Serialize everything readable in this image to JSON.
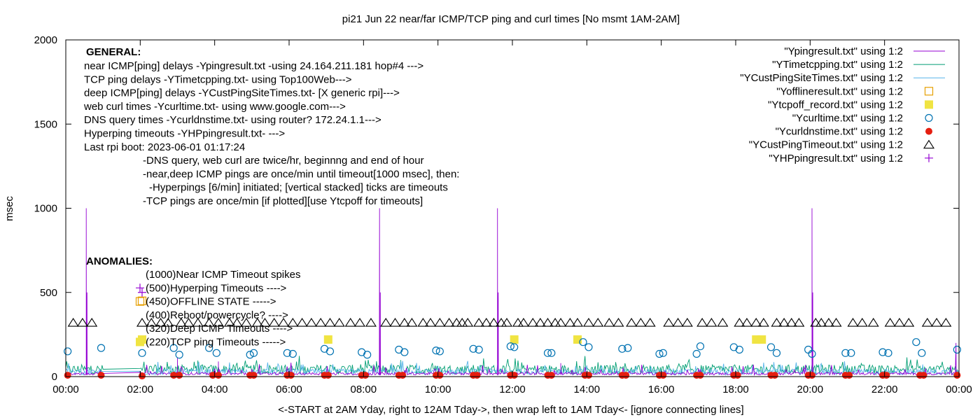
{
  "chart_data": {
    "type": "line",
    "title": "pi21 Jun 22  near/far ICMP/TCP ping and curl times [No msmt 1AM-2AM]",
    "xlabel": "<-START at 2AM Yday, right to 12AM Tday->, then wrap left to 1AM Tday<- [ignore connecting lines]",
    "ylabel": "msec",
    "xlim": [
      0,
      24
    ],
    "ylim": [
      0,
      2000
    ],
    "x_ticks": [
      "00:00",
      "02:00",
      "04:00",
      "06:00",
      "08:00",
      "10:00",
      "12:00",
      "14:00",
      "16:00",
      "18:00",
      "20:00",
      "22:00",
      "00:00"
    ],
    "y_ticks": [
      "0",
      "500",
      "1000",
      "1500",
      "2000"
    ],
    "grid": false,
    "legend_position": "top-right",
    "general_heading": "GENERAL:",
    "general_notes": [
      "near ICMP[ping] delays -Ypingresult.txt -using 24.164.211.181 hop#4 --->",
      "TCP ping delays -YTimetcpping.txt- using Top100Web--->",
      "deep ICMP[ping] delays -YCustPingSiteTimes.txt- [X generic rpi]--->",
      "web curl times -Ycurltime.txt- using www.google.com--->",
      "DNS query times -Ycurldnstime.txt- using router? 172.24.1.1--->",
      "Hyperping timeouts -YHPpingresult.txt- --->",
      "Last rpi boot: 2023-06-01 01:17:24"
    ],
    "indented_notes": [
      "-DNS query, web curl are twice/hr, beginnng and end of hour",
      "-near,deep ICMP pings are once/min until timeout[1000 msec], then:",
      "-Hyperpings [6/min] initiated; [vertical stacked] ticks are timeouts",
      "-TCP pings are once/min [if plotted][use Ytcpoff for timeouts]"
    ],
    "anomalies_heading": "ANOMALIES:",
    "anomalies": [
      {
        "text": "(1000)Near ICMP Timeout spikes",
        "marker": "none",
        "y": 1000
      },
      {
        "text": "(500)Hyperping Timeouts ---->",
        "marker": "plus",
        "y": 500
      },
      {
        "text": "(450)OFFLINE STATE ----->",
        "marker": "square-open",
        "y": 450
      },
      {
        "text": "(400)Reboot/powercycle? ---->",
        "marker": "none",
        "y": 400
      },
      {
        "text": "(320)Deep ICMP Timeouts ---->",
        "marker": "none",
        "y": 320
      },
      {
        "text": "(220)TCP ping Timeouts ----->",
        "marker": "square-filled",
        "y": 220
      }
    ],
    "series": [
      {
        "name": "\"Ypingresult.txt\" using 1:2",
        "style": "line",
        "color": "#9400d3",
        "baseline": [
          10,
          25
        ],
        "spikes": [
          [
            0.55,
            1000
          ],
          [
            0.57,
            500
          ],
          [
            8.43,
            1000
          ],
          [
            8.45,
            500
          ],
          [
            11.6,
            1000
          ],
          [
            11.62,
            500
          ],
          [
            20.05,
            1000
          ],
          [
            20.07,
            500
          ],
          [
            23.92,
            200
          ],
          [
            3.0,
            110
          ],
          [
            4.1,
            90
          ],
          [
            13.3,
            80
          ]
        ]
      },
      {
        "name": "\"YTimetcpping.txt\" using 1:2",
        "style": "line",
        "color": "#009e73",
        "baseline": [
          15,
          70
        ]
      },
      {
        "name": "\"YCustPingSiteTimes.txt\" using 1:2",
        "style": "line",
        "color": "#56b4e9",
        "baseline": [
          10,
          45
        ]
      },
      {
        "name": "\"Yofflineresult.txt\" using 1:2",
        "style": "square-open",
        "color": "#e69f00",
        "points": [
          [
            2.05,
            450
          ]
        ]
      },
      {
        "name": "\"Ytcpoff_record.txt\" using 1:2",
        "style": "square-filled",
        "color": "#f0e442",
        "points": [
          [
            2.05,
            220
          ],
          [
            7.05,
            220
          ],
          [
            12.05,
            220
          ],
          [
            13.75,
            220
          ],
          [
            18.55,
            220
          ],
          [
            18.7,
            220
          ]
        ]
      },
      {
        "name": "\"Ycurltime.txt\" using 1:2",
        "style": "circle-open",
        "color": "#0072b2",
        "points": [
          [
            0.05,
            150
          ],
          [
            0.95,
            170
          ],
          [
            2.05,
            140
          ],
          [
            2.9,
            170
          ],
          [
            3.05,
            130
          ],
          [
            3.85,
            170
          ],
          [
            4.05,
            140
          ],
          [
            4.95,
            130
          ],
          [
            5.05,
            140
          ],
          [
            5.95,
            140
          ],
          [
            6.1,
            135
          ],
          [
            6.95,
            165
          ],
          [
            7.1,
            150
          ],
          [
            7.95,
            145
          ],
          [
            8.1,
            130
          ],
          [
            8.95,
            160
          ],
          [
            9.1,
            145
          ],
          [
            9.95,
            155
          ],
          [
            10.05,
            150
          ],
          [
            10.95,
            165
          ],
          [
            11.1,
            160
          ],
          [
            11.95,
            180
          ],
          [
            12.05,
            175
          ],
          [
            12.95,
            140
          ],
          [
            13.05,
            140
          ],
          [
            13.9,
            205
          ],
          [
            14.05,
            175
          ],
          [
            14.95,
            165
          ],
          [
            15.1,
            170
          ],
          [
            15.95,
            135
          ],
          [
            16.05,
            140
          ],
          [
            16.95,
            135
          ],
          [
            17.05,
            180
          ],
          [
            17.95,
            175
          ],
          [
            18.1,
            160
          ],
          [
            18.95,
            175
          ],
          [
            19.1,
            140
          ],
          [
            19.95,
            160
          ],
          [
            20.05,
            135
          ],
          [
            20.95,
            140
          ],
          [
            21.1,
            140
          ],
          [
            21.95,
            145
          ],
          [
            22.1,
            140
          ],
          [
            22.85,
            205
          ],
          [
            23.0,
            140
          ],
          [
            23.95,
            160
          ]
        ]
      },
      {
        "name": "\"Ycurldnstime.txt\" using 1:2",
        "style": "circle-filled",
        "color": "#e51e10",
        "points": [
          [
            0.05,
            8
          ],
          [
            0.95,
            8
          ],
          [
            2.05,
            4
          ],
          [
            2.9,
            8
          ],
          [
            3.05,
            8
          ],
          [
            3.95,
            8
          ],
          [
            4.1,
            8
          ],
          [
            4.95,
            8
          ],
          [
            5.05,
            8
          ],
          [
            5.95,
            8
          ],
          [
            6.05,
            8
          ],
          [
            6.95,
            8
          ],
          [
            7.05,
            8
          ],
          [
            7.95,
            8
          ],
          [
            8.05,
            8
          ],
          [
            8.95,
            8
          ],
          [
            9.05,
            8
          ],
          [
            9.95,
            8
          ],
          [
            10.05,
            8
          ],
          [
            10.95,
            8
          ],
          [
            11.05,
            8
          ],
          [
            11.95,
            8
          ],
          [
            12.05,
            8
          ],
          [
            12.95,
            8
          ],
          [
            13.05,
            8
          ],
          [
            13.95,
            8
          ],
          [
            14.05,
            8
          ],
          [
            14.95,
            8
          ],
          [
            15.05,
            8
          ],
          [
            15.95,
            8
          ],
          [
            16.05,
            8
          ],
          [
            16.95,
            8
          ],
          [
            17.05,
            8
          ],
          [
            17.95,
            8
          ],
          [
            18.05,
            8
          ],
          [
            18.95,
            8
          ],
          [
            19.05,
            8
          ],
          [
            19.95,
            8
          ],
          [
            20.05,
            8
          ],
          [
            20.95,
            8
          ],
          [
            21.05,
            8
          ],
          [
            21.95,
            8
          ],
          [
            22.05,
            8
          ],
          [
            22.95,
            8
          ],
          [
            23.05,
            8
          ],
          [
            23.95,
            8
          ]
        ]
      },
      {
        "name": "\"YCustPingTimeout.txt\" using 1:2",
        "style": "triangle-open",
        "color": "#000000",
        "points": [
          [
            0.2,
            320
          ],
          [
            0.45,
            320
          ],
          [
            0.7,
            320
          ],
          [
            2.05,
            320
          ],
          [
            2.3,
            320
          ],
          [
            2.55,
            320
          ],
          [
            2.75,
            320
          ],
          [
            3.1,
            320
          ],
          [
            3.3,
            320
          ],
          [
            3.55,
            320
          ],
          [
            3.85,
            320
          ],
          [
            4.1,
            320
          ],
          [
            4.4,
            320
          ],
          [
            4.6,
            320
          ],
          [
            4.85,
            320
          ],
          [
            5.15,
            320
          ],
          [
            5.35,
            320
          ],
          [
            5.6,
            320
          ],
          [
            5.85,
            320
          ],
          [
            6.1,
            320
          ],
          [
            6.35,
            320
          ],
          [
            6.6,
            320
          ],
          [
            6.85,
            320
          ],
          [
            7.1,
            320
          ],
          [
            7.35,
            320
          ],
          [
            7.65,
            320
          ],
          [
            7.9,
            320
          ],
          [
            8.2,
            320
          ],
          [
            8.6,
            320
          ],
          [
            8.85,
            320
          ],
          [
            9.1,
            320
          ],
          [
            9.3,
            320
          ],
          [
            9.6,
            320
          ],
          [
            9.8,
            320
          ],
          [
            10.05,
            320
          ],
          [
            10.3,
            320
          ],
          [
            10.5,
            320
          ],
          [
            10.65,
            320
          ],
          [
            10.8,
            320
          ],
          [
            11.1,
            320
          ],
          [
            11.3,
            320
          ],
          [
            11.5,
            320
          ],
          [
            11.7,
            320
          ],
          [
            11.85,
            320
          ],
          [
            12.15,
            320
          ],
          [
            12.3,
            320
          ],
          [
            12.55,
            320
          ],
          [
            12.75,
            320
          ],
          [
            12.95,
            320
          ],
          [
            13.15,
            320
          ],
          [
            13.3,
            320
          ],
          [
            13.55,
            320
          ],
          [
            13.75,
            320
          ],
          [
            14.05,
            320
          ],
          [
            14.3,
            320
          ],
          [
            14.6,
            320
          ],
          [
            14.85,
            320
          ],
          [
            15.2,
            320
          ],
          [
            15.45,
            320
          ],
          [
            15.7,
            320
          ],
          [
            16.2,
            320
          ],
          [
            16.45,
            320
          ],
          [
            16.7,
            320
          ],
          [
            17.1,
            320
          ],
          [
            17.35,
            320
          ],
          [
            17.65,
            320
          ],
          [
            18.1,
            320
          ],
          [
            18.3,
            320
          ],
          [
            18.55,
            320
          ],
          [
            18.75,
            320
          ],
          [
            19.1,
            320
          ],
          [
            19.3,
            320
          ],
          [
            19.5,
            320
          ],
          [
            19.7,
            320
          ],
          [
            20.15,
            320
          ],
          [
            20.3,
            320
          ],
          [
            20.5,
            320
          ],
          [
            20.7,
            320
          ],
          [
            21.15,
            320
          ],
          [
            21.4,
            320
          ],
          [
            21.7,
            320
          ],
          [
            22.15,
            320
          ],
          [
            22.4,
            320
          ],
          [
            22.65,
            320
          ],
          [
            23.15,
            320
          ],
          [
            23.4,
            320
          ],
          [
            23.65,
            320
          ]
        ]
      },
      {
        "name": "\"YHPpingresult.txt\" using 1:2",
        "style": "plus",
        "color": "#9400d3",
        "points": [
          [
            2.05,
            500
          ]
        ]
      }
    ]
  }
}
